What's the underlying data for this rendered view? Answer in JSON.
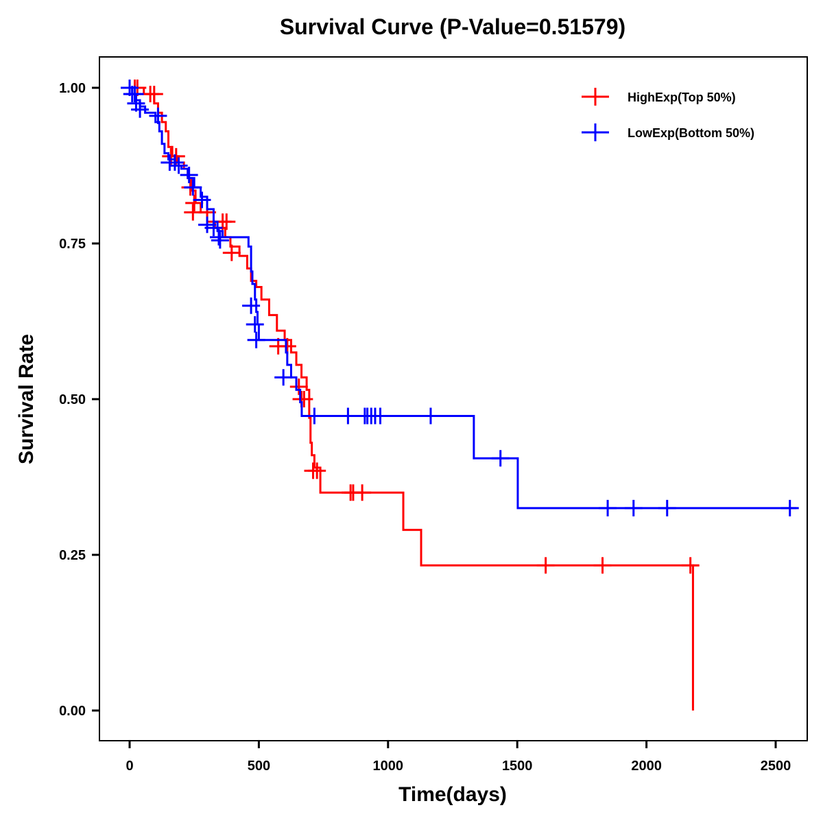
{
  "chart_data": {
    "type": "line",
    "subtype": "kaplan-meier-step",
    "title": "Survival Curve (P-Value=0.51579)",
    "xlabel": "Time(days)",
    "ylabel": "Survival Rate",
    "xlim": [
      -120,
      2600
    ],
    "ylim": [
      -0.045,
      1.045
    ],
    "x_ticks": [
      0,
      500,
      1000,
      1500,
      2000,
      2500
    ],
    "x_tick_labels": [
      "0",
      "500",
      "1000",
      "1500",
      "2000",
      "2500"
    ],
    "y_ticks": [
      0.0,
      0.25,
      0.5,
      0.75,
      1.0
    ],
    "y_tick_labels": [
      "0.00",
      "0.25",
      "0.50",
      "0.75",
      "1.00"
    ],
    "grid": false,
    "legend_position": "top-right",
    "series": [
      {
        "name": "HighExp(Top 50%)",
        "color": "#ff0000",
        "steps": [
          [
            0,
            1.0
          ],
          [
            30,
            1.0
          ],
          [
            55,
            0.99
          ],
          [
            95,
            0.975
          ],
          [
            110,
            0.96
          ],
          [
            125,
            0.945
          ],
          [
            140,
            0.93
          ],
          [
            150,
            0.905
          ],
          [
            165,
            0.89
          ],
          [
            185,
            0.88
          ],
          [
            210,
            0.87
          ],
          [
            225,
            0.855
          ],
          [
            240,
            0.835
          ],
          [
            255,
            0.815
          ],
          [
            275,
            0.8
          ],
          [
            300,
            0.785
          ],
          [
            330,
            0.775
          ],
          [
            370,
            0.76
          ],
          [
            390,
            0.745
          ],
          [
            425,
            0.73
          ],
          [
            455,
            0.71
          ],
          [
            470,
            0.69
          ],
          [
            490,
            0.68
          ],
          [
            510,
            0.66
          ],
          [
            540,
            0.635
          ],
          [
            570,
            0.61
          ],
          [
            600,
            0.595
          ],
          [
            625,
            0.575
          ],
          [
            645,
            0.555
          ],
          [
            665,
            0.535
          ],
          [
            685,
            0.515
          ],
          [
            695,
            0.47
          ],
          [
            700,
            0.43
          ],
          [
            705,
            0.41
          ],
          [
            715,
            0.39
          ],
          [
            738,
            0.35
          ],
          [
            1059,
            0.29
          ],
          [
            1128,
            0.233
          ],
          [
            2180,
            0.0
          ]
        ],
        "end_time": 2180,
        "censored": [
          [
            20,
            1.0
          ],
          [
            30,
            1.0
          ],
          [
            80,
            0.99
          ],
          [
            95,
            0.99
          ],
          [
            160,
            0.89
          ],
          [
            180,
            0.89
          ],
          [
            235,
            0.84
          ],
          [
            245,
            0.8
          ],
          [
            250,
            0.815
          ],
          [
            300,
            0.8
          ],
          [
            360,
            0.785
          ],
          [
            375,
            0.785
          ],
          [
            395,
            0.735
          ],
          [
            575,
            0.585
          ],
          [
            610,
            0.585
          ],
          [
            655,
            0.52
          ],
          [
            665,
            0.5
          ],
          [
            675,
            0.5
          ],
          [
            710,
            0.385
          ],
          [
            725,
            0.385
          ],
          [
            855,
            0.35
          ],
          [
            865,
            0.35
          ],
          [
            900,
            0.35
          ],
          [
            1610,
            0.233
          ],
          [
            1830,
            0.233
          ],
          [
            2170,
            0.233
          ]
        ]
      },
      {
        "name": "LowExp(Bottom 50%)",
        "color": "#0000ff",
        "steps": [
          [
            0,
            1.0
          ],
          [
            10,
            0.99
          ],
          [
            25,
            0.98
          ],
          [
            40,
            0.97
          ],
          [
            60,
            0.96
          ],
          [
            100,
            0.945
          ],
          [
            115,
            0.93
          ],
          [
            125,
            0.91
          ],
          [
            135,
            0.895
          ],
          [
            150,
            0.885
          ],
          [
            175,
            0.875
          ],
          [
            200,
            0.87
          ],
          [
            225,
            0.855
          ],
          [
            250,
            0.84
          ],
          [
            275,
            0.825
          ],
          [
            300,
            0.805
          ],
          [
            325,
            0.785
          ],
          [
            340,
            0.77
          ],
          [
            360,
            0.76
          ],
          [
            460,
            0.745
          ],
          [
            470,
            0.705
          ],
          [
            475,
            0.685
          ],
          [
            485,
            0.66
          ],
          [
            490,
            0.64
          ],
          [
            495,
            0.62
          ],
          [
            500,
            0.595
          ],
          [
            605,
            0.575
          ],
          [
            610,
            0.555
          ],
          [
            625,
            0.535
          ],
          [
            645,
            0.515
          ],
          [
            660,
            0.495
          ],
          [
            666,
            0.473
          ],
          [
            1332,
            0.405
          ],
          [
            1502,
            0.325
          ]
        ],
        "end_time": 2580,
        "censored": [
          [
            0,
            1.0
          ],
          [
            10,
            0.99
          ],
          [
            20,
            0.99
          ],
          [
            25,
            0.975
          ],
          [
            40,
            0.965
          ],
          [
            110,
            0.955
          ],
          [
            155,
            0.88
          ],
          [
            175,
            0.88
          ],
          [
            190,
            0.875
          ],
          [
            230,
            0.86
          ],
          [
            245,
            0.84
          ],
          [
            280,
            0.82
          ],
          [
            300,
            0.78
          ],
          [
            325,
            0.775
          ],
          [
            345,
            0.76
          ],
          [
            350,
            0.755
          ],
          [
            470,
            0.65
          ],
          [
            485,
            0.62
          ],
          [
            490,
            0.595
          ],
          [
            595,
            0.535
          ],
          [
            715,
            0.473
          ],
          [
            845,
            0.473
          ],
          [
            910,
            0.473
          ],
          [
            920,
            0.473
          ],
          [
            935,
            0.473
          ],
          [
            950,
            0.473
          ],
          [
            970,
            0.473
          ],
          [
            1165,
            0.473
          ],
          [
            1435,
            0.405
          ],
          [
            1850,
            0.325
          ],
          [
            1950,
            0.325
          ],
          [
            2080,
            0.325
          ],
          [
            2555,
            0.325
          ]
        ]
      }
    ]
  }
}
